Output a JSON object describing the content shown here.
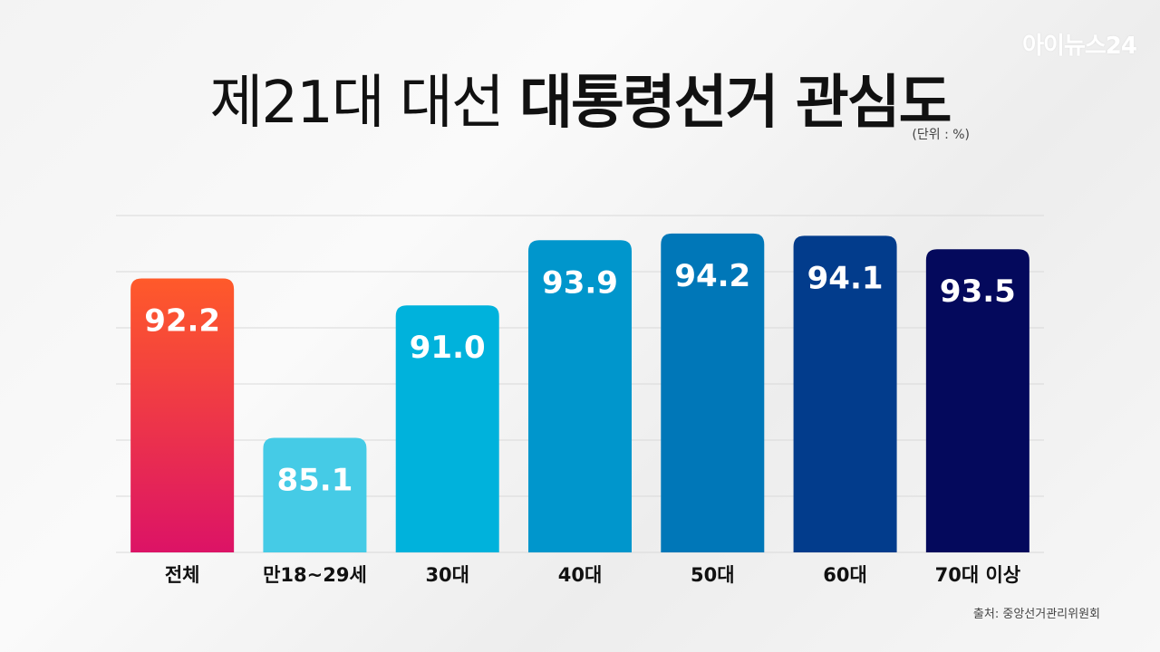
{
  "watermark": "아이뉴스24",
  "title": {
    "light": "제21대 대선",
    "bold": "대통령선거 관심도"
  },
  "unit": "(단위 : %)",
  "source": "출처: 중앙선거관리위원회",
  "colors": {
    "grid": "#d9d9d9",
    "value_label": "#ffffff",
    "category_label": "#111111"
  },
  "chart_data": {
    "type": "bar",
    "title": "제21대 대선 대통령선거 관심도",
    "ylabel": "(단위 : %)",
    "xlabel": "",
    "grid": true,
    "ylim": [
      80,
      95
    ],
    "categories": [
      "전체",
      "만18~29세",
      "30대",
      "40대",
      "50대",
      "60대",
      "70대 이상"
    ],
    "values": [
      92.2,
      85.1,
      91.0,
      93.9,
      94.2,
      94.1,
      93.5
    ],
    "value_labels": [
      "92.2",
      "85.1",
      "91.0",
      "93.9",
      "94.2",
      "94.1",
      "93.5"
    ],
    "bar_colors": [
      [
        "#ff5a2a",
        "#dc1366"
      ],
      [
        "#45cbe6",
        "#45cbe6"
      ],
      [
        "#00b2dc",
        "#00b2dc"
      ],
      [
        "#0096cc",
        "#0096cc"
      ],
      [
        "#0077b8",
        "#0077b8"
      ],
      [
        "#023c8c",
        "#023c8c"
      ],
      [
        "#04095c",
        "#04095c"
      ]
    ]
  }
}
